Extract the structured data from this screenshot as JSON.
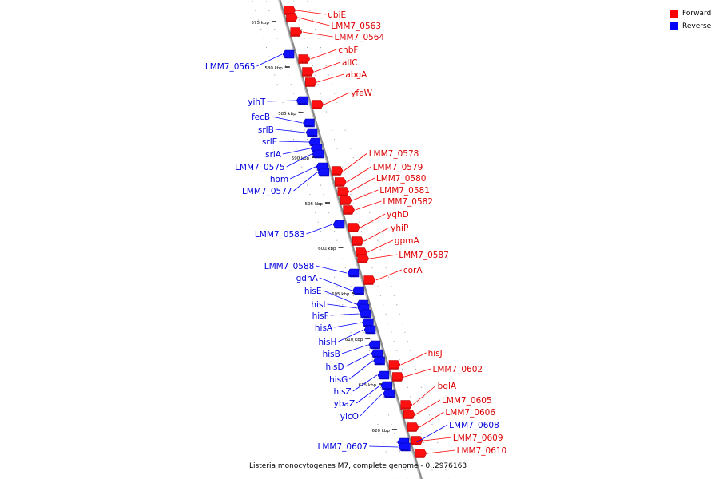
{
  "caption": "Listeria monocytogenes M7, complete genome - 0..2976163",
  "legend": {
    "forward_label": "Forward",
    "reverse_label": "Reverse",
    "forward_color": "#ff0000",
    "reverse_color": "#0000ff"
  },
  "kbp_ticks": [
    "575 kbp",
    "580 kbp",
    "585 kbp",
    "590 kbp",
    "595 kbp",
    "600 kbp",
    "605 kbp",
    "610 kbp",
    "615 kbp",
    "620 kbp"
  ],
  "forward_genes": [
    "ubiE",
    "LMM7_0563",
    "LMM7_0564",
    "chbF",
    "allC",
    "abgA",
    "yfeW",
    "LMM7_0578",
    "LMM7_0579",
    "LMM7_0580",
    "LMM7_0581",
    "LMM7_0582",
    "yqhD",
    "yhiP",
    "gpmA",
    "LMM7_0587",
    "corA",
    "hisJ",
    "LMM7_0602",
    "bglA",
    "LMM7_0605",
    "LMM7_0606",
    "LMM7_0609",
    "LMM7_0610"
  ],
  "reverse_genes": [
    "LMM7_0565",
    "yihT",
    "fecB",
    "srlB",
    "srlE",
    "srlA",
    "LMM7_0575",
    "hom",
    "LMM7_0577",
    "LMM7_0583",
    "LMM7_0588",
    "gdhA",
    "hisE",
    "hisI",
    "hisF",
    "hisA",
    "hisH",
    "hisB",
    "hisD",
    "hisG",
    "hisZ",
    "ybaZ",
    "yicO",
    "LMM7_0608",
    "LMM7_0607"
  ]
}
